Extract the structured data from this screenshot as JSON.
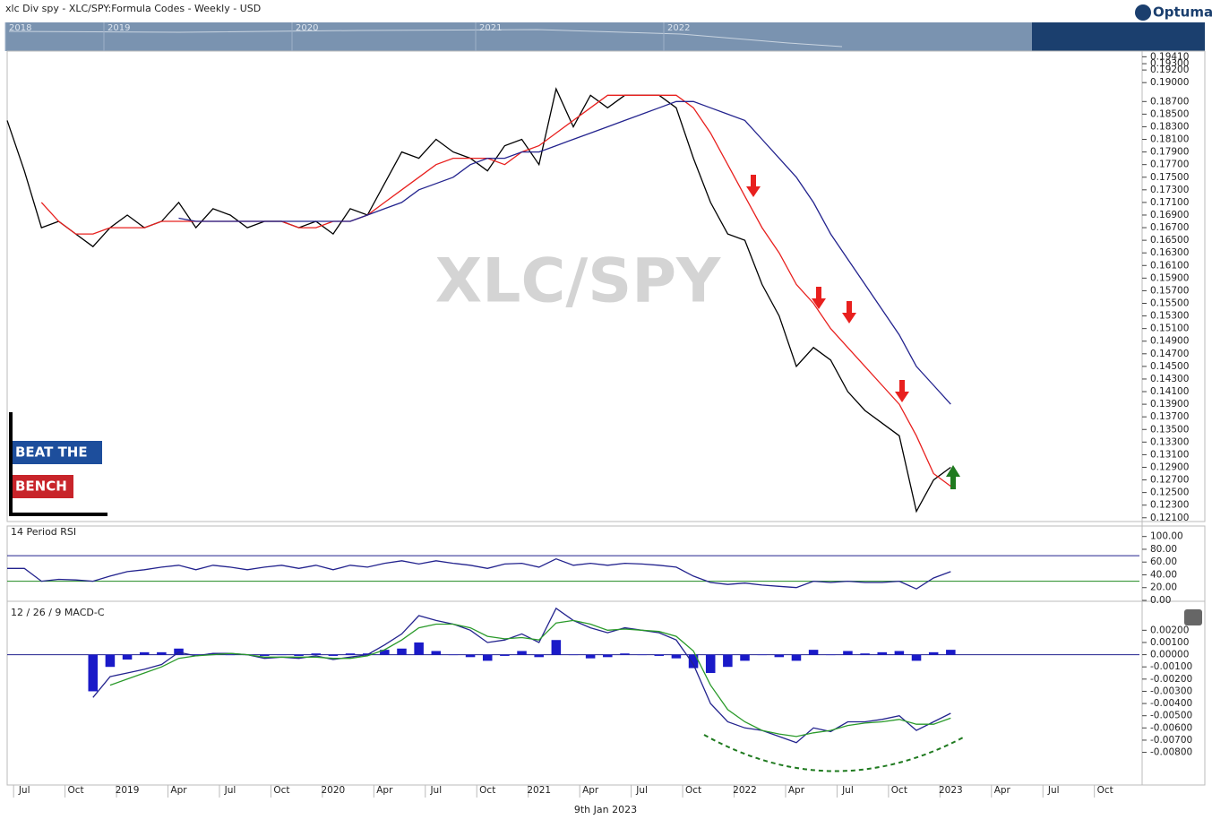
{
  "header": {
    "title": "xlc Div spy - XLC/SPY:Formula Codes - Weekly - USD",
    "logo": "Optuma"
  },
  "navigator": {
    "years": [
      "2018",
      "2019",
      "2020",
      "2021",
      "2022"
    ]
  },
  "watermark": "XLC/SPY",
  "branding": [
    "BEAT THE",
    "BENCH"
  ],
  "footer_date": "9th Jan 2023",
  "chart_data": [
    {
      "type": "line",
      "xlim": [
        "2018-06",
        "2023-12"
      ],
      "ylim": [
        0.1204,
        0.195
      ],
      "grid": false,
      "x": [
        "2018-06",
        "2018-07",
        "2018-08",
        "2018-09",
        "2018-10",
        "2018-11",
        "2018-12",
        "2019-01",
        "2019-02",
        "2019-03",
        "2019-04",
        "2019-05",
        "2019-06",
        "2019-07",
        "2019-08",
        "2019-09",
        "2019-10",
        "2019-11",
        "2019-12",
        "2020-01",
        "2020-02",
        "2020-03",
        "2020-04",
        "2020-05",
        "2020-06",
        "2020-07",
        "2020-08",
        "2020-09",
        "2020-10",
        "2020-11",
        "2020-12",
        "2021-01",
        "2021-02",
        "2021-03",
        "2021-04",
        "2021-05",
        "2021-06",
        "2021-07",
        "2021-08",
        "2021-09",
        "2021-10",
        "2021-11",
        "2021-12",
        "2022-01",
        "2022-02",
        "2022-03",
        "2022-04",
        "2022-05",
        "2022-06",
        "2022-07",
        "2022-08",
        "2022-09",
        "2022-10",
        "2022-11",
        "2022-12",
        "2023-01"
      ],
      "series": [
        {
          "color": "#000000",
          "values": [
            0.184,
            0.176,
            0.167,
            0.168,
            0.166,
            0.164,
            0.167,
            0.169,
            0.167,
            0.168,
            0.171,
            0.167,
            0.17,
            0.169,
            0.167,
            0.168,
            0.168,
            0.167,
            0.168,
            0.166,
            0.17,
            0.169,
            0.174,
            0.179,
            0.178,
            0.181,
            0.179,
            0.178,
            0.176,
            0.18,
            0.181,
            0.177,
            0.189,
            0.183,
            0.188,
            0.186,
            0.188,
            0.188,
            0.188,
            0.186,
            0.178,
            0.171,
            0.166,
            0.165,
            0.158,
            0.153,
            0.145,
            0.148,
            0.146,
            0.141,
            0.138,
            0.136,
            0.134,
            0.122,
            0.127,
            0.129
          ]
        },
        {
          "color": "#e8201e",
          "values": [
            null,
            null,
            0.171,
            0.168,
            0.166,
            0.166,
            0.167,
            0.167,
            0.167,
            0.168,
            0.168,
            0.168,
            0.168,
            0.168,
            0.168,
            0.168,
            0.168,
            0.167,
            0.167,
            0.168,
            0.168,
            0.169,
            0.171,
            0.173,
            0.175,
            0.177,
            0.178,
            0.178,
            0.178,
            0.177,
            0.179,
            0.18,
            0.182,
            0.184,
            0.186,
            0.188,
            0.188,
            0.188,
            0.188,
            0.188,
            0.186,
            0.182,
            0.177,
            0.172,
            0.167,
            0.163,
            0.158,
            0.155,
            0.151,
            0.148,
            0.145,
            0.142,
            0.139,
            0.134,
            0.128,
            0.126
          ]
        },
        {
          "color": "#23238e",
          "values": [
            null,
            null,
            null,
            null,
            null,
            null,
            null,
            null,
            null,
            null,
            0.1685,
            0.168,
            0.168,
            0.168,
            0.168,
            0.168,
            0.168,
            0.168,
            0.168,
            0.168,
            0.168,
            0.169,
            0.17,
            0.171,
            0.173,
            0.174,
            0.175,
            0.177,
            0.178,
            0.178,
            0.179,
            0.179,
            0.18,
            0.181,
            0.182,
            0.183,
            0.184,
            0.185,
            0.186,
            0.187,
            0.187,
            0.186,
            0.185,
            0.184,
            0.181,
            0.178,
            0.175,
            0.171,
            0.166,
            0.162,
            0.158,
            0.154,
            0.15,
            0.145,
            0.142,
            0.139
          ]
        }
      ],
      "yticks": [
        {
          "value": 0.1941,
          "label": "0.19410"
        },
        {
          "value": 0.193,
          "label": "0.19300"
        },
        {
          "value": 0.192,
          "label": "0.19200"
        },
        {
          "value": 0.19,
          "label": "0.19000"
        },
        {
          "value": 0.187,
          "label": "0.18700"
        },
        {
          "value": 0.185,
          "label": "0.18500"
        },
        {
          "value": 0.183,
          "label": "0.18300"
        },
        {
          "value": 0.181,
          "label": "0.18100"
        },
        {
          "value": 0.179,
          "label": "0.17900"
        },
        {
          "value": 0.177,
          "label": "0.17700"
        },
        {
          "value": 0.175,
          "label": "0.17500"
        },
        {
          "value": 0.173,
          "label": "0.17300"
        },
        {
          "value": 0.171,
          "label": "0.17100"
        },
        {
          "value": 0.169,
          "label": "0.16900"
        },
        {
          "value": 0.167,
          "label": "0.16700"
        },
        {
          "value": 0.165,
          "label": "0.16500"
        },
        {
          "value": 0.163,
          "label": "0.16300"
        },
        {
          "value": 0.161,
          "label": "0.16100"
        },
        {
          "value": 0.159,
          "label": "0.15900"
        },
        {
          "value": 0.157,
          "label": "0.15700"
        },
        {
          "value": 0.155,
          "label": "0.15500"
        },
        {
          "value": 0.153,
          "label": "0.15300"
        },
        {
          "value": 0.151,
          "label": "0.15100"
        },
        {
          "value": 0.149,
          "label": "0.14900"
        },
        {
          "value": 0.147,
          "label": "0.14700"
        },
        {
          "value": 0.145,
          "label": "0.14500"
        },
        {
          "value": 0.143,
          "label": "0.14300"
        },
        {
          "value": 0.141,
          "label": "0.14100"
        },
        {
          "value": 0.139,
          "label": "0.13900"
        },
        {
          "value": 0.137,
          "label": "0.13700"
        },
        {
          "value": 0.135,
          "label": "0.13500"
        },
        {
          "value": 0.133,
          "label": "0.13300"
        },
        {
          "value": 0.131,
          "label": "0.13100"
        },
        {
          "value": 0.129,
          "label": "0.12900"
        },
        {
          "value": 0.127,
          "label": "0.12700"
        },
        {
          "value": 0.125,
          "label": "0.12500"
        },
        {
          "value": 0.123,
          "label": "0.12300"
        },
        {
          "value": 0.121,
          "label": "0.12100"
        }
      ]
    },
    {
      "type": "line",
      "title": "14 Period RSI",
      "xlim": [
        "2018-06",
        "2023-12"
      ],
      "ylim": [
        0,
        115
      ],
      "x": [
        "2018-06",
        "2018-07",
        "2018-08",
        "2018-09",
        "2018-10",
        "2018-11",
        "2018-12",
        "2019-01",
        "2019-02",
        "2019-03",
        "2019-04",
        "2019-05",
        "2019-06",
        "2019-07",
        "2019-08",
        "2019-09",
        "2019-10",
        "2019-11",
        "2019-12",
        "2020-01",
        "2020-02",
        "2020-03",
        "2020-04",
        "2020-05",
        "2020-06",
        "2020-07",
        "2020-08",
        "2020-09",
        "2020-10",
        "2020-11",
        "2020-12",
        "2021-01",
        "2021-02",
        "2021-03",
        "2021-04",
        "2021-05",
        "2021-06",
        "2021-07",
        "2021-08",
        "2021-09",
        "2021-10",
        "2021-11",
        "2021-12",
        "2022-01",
        "2022-02",
        "2022-03",
        "2022-04",
        "2022-05",
        "2022-06",
        "2022-07",
        "2022-08",
        "2022-09",
        "2022-10",
        "2022-11",
        "2022-12",
        "2023-01"
      ],
      "series": [
        {
          "color": "#23238e",
          "values": [
            50,
            50,
            30,
            33,
            32,
            30,
            38,
            45,
            48,
            52,
            55,
            48,
            55,
            52,
            48,
            52,
            55,
            50,
            55,
            48,
            55,
            52,
            58,
            62,
            57,
            62,
            58,
            55,
            50,
            57,
            58,
            52,
            65,
            55,
            58,
            55,
            58,
            57,
            55,
            52,
            38,
            28,
            25,
            27,
            24,
            22,
            20,
            30,
            28,
            30,
            28,
            28,
            30,
            18,
            35,
            45
          ]
        }
      ],
      "levels": [
        {
          "value": 70,
          "color": "#23238e"
        },
        {
          "value": 30,
          "color": "#1f8a1f"
        }
      ],
      "yticks": [
        {
          "value": 100,
          "label": "100.00"
        },
        {
          "value": 80,
          "label": "80.00"
        },
        {
          "value": 60,
          "label": "60.00"
        },
        {
          "value": 40,
          "label": "40.00"
        },
        {
          "value": 20,
          "label": "20.00"
        },
        {
          "value": 0,
          "label": "0.00"
        }
      ]
    },
    {
      "type": "line",
      "title": "12 / 26 / 9 MACD-C",
      "xlim": [
        "2018-06",
        "2023-12"
      ],
      "ylim": [
        -0.0106,
        0.0043
      ],
      "x": [
        "2018-06",
        "2018-07",
        "2018-08",
        "2018-09",
        "2018-10",
        "2018-11",
        "2018-12",
        "2019-01",
        "2019-02",
        "2019-03",
        "2019-04",
        "2019-05",
        "2019-06",
        "2019-07",
        "2019-08",
        "2019-09",
        "2019-10",
        "2019-11",
        "2019-12",
        "2020-01",
        "2020-02",
        "2020-03",
        "2020-04",
        "2020-05",
        "2020-06",
        "2020-07",
        "2020-08",
        "2020-09",
        "2020-10",
        "2020-11",
        "2020-12",
        "2021-01",
        "2021-02",
        "2021-03",
        "2021-04",
        "2021-05",
        "2021-06",
        "2021-07",
        "2021-08",
        "2021-09",
        "2021-10",
        "2021-11",
        "2021-12",
        "2022-01",
        "2022-02",
        "2022-03",
        "2022-04",
        "2022-05",
        "2022-06",
        "2022-07",
        "2022-08",
        "2022-09",
        "2022-10",
        "2022-11",
        "2022-12",
        "2023-01"
      ],
      "series": [
        {
          "type": "bar",
          "color": "#1a1ac8",
          "values": [
            null,
            null,
            null,
            null,
            null,
            -0.003,
            -0.001,
            -0.0004,
            0.0002,
            0.0002,
            0.0005,
            0.0,
            0.0001,
            0.0,
            0.0,
            -0.0001,
            0.0,
            -0.0001,
            0.0001,
            -0.0001,
            0.0001,
            0.0001,
            0.0004,
            0.0005,
            0.001,
            0.0003,
            0.0,
            -0.0002,
            -0.0005,
            -0.0001,
            0.0003,
            -0.0002,
            0.0012,
            0.0,
            -0.0003,
            -0.0002,
            0.0001,
            0.0,
            -0.0001,
            -0.0003,
            -0.0011,
            -0.0015,
            -0.001,
            -0.0005,
            0.0,
            -0.0002,
            -0.0005,
            0.0004,
            0.0,
            0.0003,
            0.0001,
            0.0002,
            0.0003,
            -0.0005,
            0.0002,
            0.0004
          ]
        },
        {
          "color": "#23238e",
          "values": [
            null,
            null,
            null,
            null,
            null,
            -0.0035,
            -0.0018,
            -0.0015,
            -0.0012,
            -0.0008,
            0.0002,
            -0.0001,
            0.0001,
            0.0001,
            0.0,
            -0.0003,
            -0.0002,
            -0.0003,
            -0.0001,
            -0.0004,
            -0.0002,
            0.0,
            0.0008,
            0.0017,
            0.0032,
            0.0028,
            0.0025,
            0.002,
            0.001,
            0.0012,
            0.0017,
            0.001,
            0.0038,
            0.0028,
            0.0022,
            0.0018,
            0.0022,
            0.002,
            0.0018,
            0.0012,
            -0.0008,
            -0.004,
            -0.0055,
            -0.006,
            -0.0062,
            -0.0067,
            -0.0072,
            -0.006,
            -0.0063,
            -0.0055,
            -0.0055,
            -0.0053,
            -0.005,
            -0.0062,
            -0.0055,
            -0.0048
          ]
        },
        {
          "color": "#2a9a2a",
          "values": [
            null,
            null,
            null,
            null,
            null,
            null,
            -0.0025,
            -0.002,
            -0.0015,
            -0.001,
            -0.0003,
            -0.0001,
            0.0,
            0.0001,
            0.0,
            -0.0002,
            -0.0002,
            -0.0002,
            -0.0002,
            -0.0003,
            -0.0003,
            -0.0001,
            0.0004,
            0.0012,
            0.0022,
            0.0025,
            0.0025,
            0.0022,
            0.0015,
            0.0013,
            0.0014,
            0.0012,
            0.0026,
            0.0028,
            0.0025,
            0.002,
            0.0021,
            0.002,
            0.0019,
            0.0015,
            0.0003,
            -0.0025,
            -0.0045,
            -0.0055,
            -0.0062,
            -0.0065,
            -0.0067,
            -0.0064,
            -0.0062,
            -0.0058,
            -0.0056,
            -0.0055,
            -0.0053,
            -0.0057,
            -0.0057,
            -0.0052
          ]
        }
      ],
      "yticks": [
        {
          "value": 0.002,
          "label": "0.00200"
        },
        {
          "value": 0.001,
          "label": "0.00100"
        },
        {
          "value": 0,
          "label": "0.00000"
        },
        {
          "value": -0.001,
          "label": "-0.00100"
        },
        {
          "value": -0.002,
          "label": "-0.00200"
        },
        {
          "value": -0.003,
          "label": "-0.00300"
        },
        {
          "value": -0.004,
          "label": "-0.00400"
        },
        {
          "value": -0.005,
          "label": "-0.00500"
        },
        {
          "value": -0.006,
          "label": "-0.00600"
        },
        {
          "value": -0.007,
          "label": "-0.00700"
        },
        {
          "value": -0.008,
          "label": "-0.00800"
        }
      ],
      "xticks": [
        {
          "value": "2018-07",
          "label": "Jul"
        },
        {
          "value": "2018-10",
          "label": "Oct"
        },
        {
          "value": "2019-01",
          "label": "2019"
        },
        {
          "value": "2019-04",
          "label": "Apr"
        },
        {
          "value": "2019-07",
          "label": "Jul"
        },
        {
          "value": "2019-10",
          "label": "Oct"
        },
        {
          "value": "2020-01",
          "label": "2020"
        },
        {
          "value": "2020-04",
          "label": "Apr"
        },
        {
          "value": "2020-07",
          "label": "Jul"
        },
        {
          "value": "2020-10",
          "label": "Oct"
        },
        {
          "value": "2021-01",
          "label": "2021"
        },
        {
          "value": "2021-04",
          "label": "Apr"
        },
        {
          "value": "2021-07",
          "label": "Jul"
        },
        {
          "value": "2021-10",
          "label": "Oct"
        },
        {
          "value": "2022-01",
          "label": "2022"
        },
        {
          "value": "2022-04",
          "label": "Apr"
        },
        {
          "value": "2022-07",
          "label": "Jul"
        },
        {
          "value": "2022-10",
          "label": "Oct"
        },
        {
          "value": "2023-01",
          "label": "2023"
        },
        {
          "value": "2023-04",
          "label": "Apr"
        },
        {
          "value": "2023-07",
          "label": "Jul"
        },
        {
          "value": "2023-10",
          "label": "Oct"
        }
      ]
    }
  ]
}
